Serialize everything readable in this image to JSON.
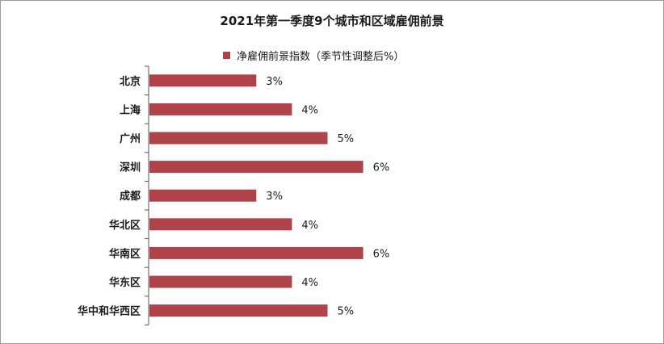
{
  "chart_data": {
    "type": "bar",
    "orientation": "horizontal",
    "title": "2021年第一季度9个城市和区域雇佣前景",
    "categories": [
      "北京",
      "上海",
      "广州",
      "深圳",
      "成都",
      "华北区",
      "华南区",
      "华东区",
      "华中和华西区"
    ],
    "series": [
      {
        "name": "净雇佣前景指数（季节性调整后%）",
        "values": [
          3,
          4,
          5,
          6,
          3,
          4,
          6,
          4,
          5
        ],
        "color": "#b0424a"
      }
    ],
    "data_labels": [
      "3%",
      "4%",
      "5%",
      "6%",
      "3%",
      "4%",
      "6%",
      "4%",
      "5%"
    ],
    "value_axis_visible": false,
    "grid": false,
    "legend_position": "top"
  }
}
